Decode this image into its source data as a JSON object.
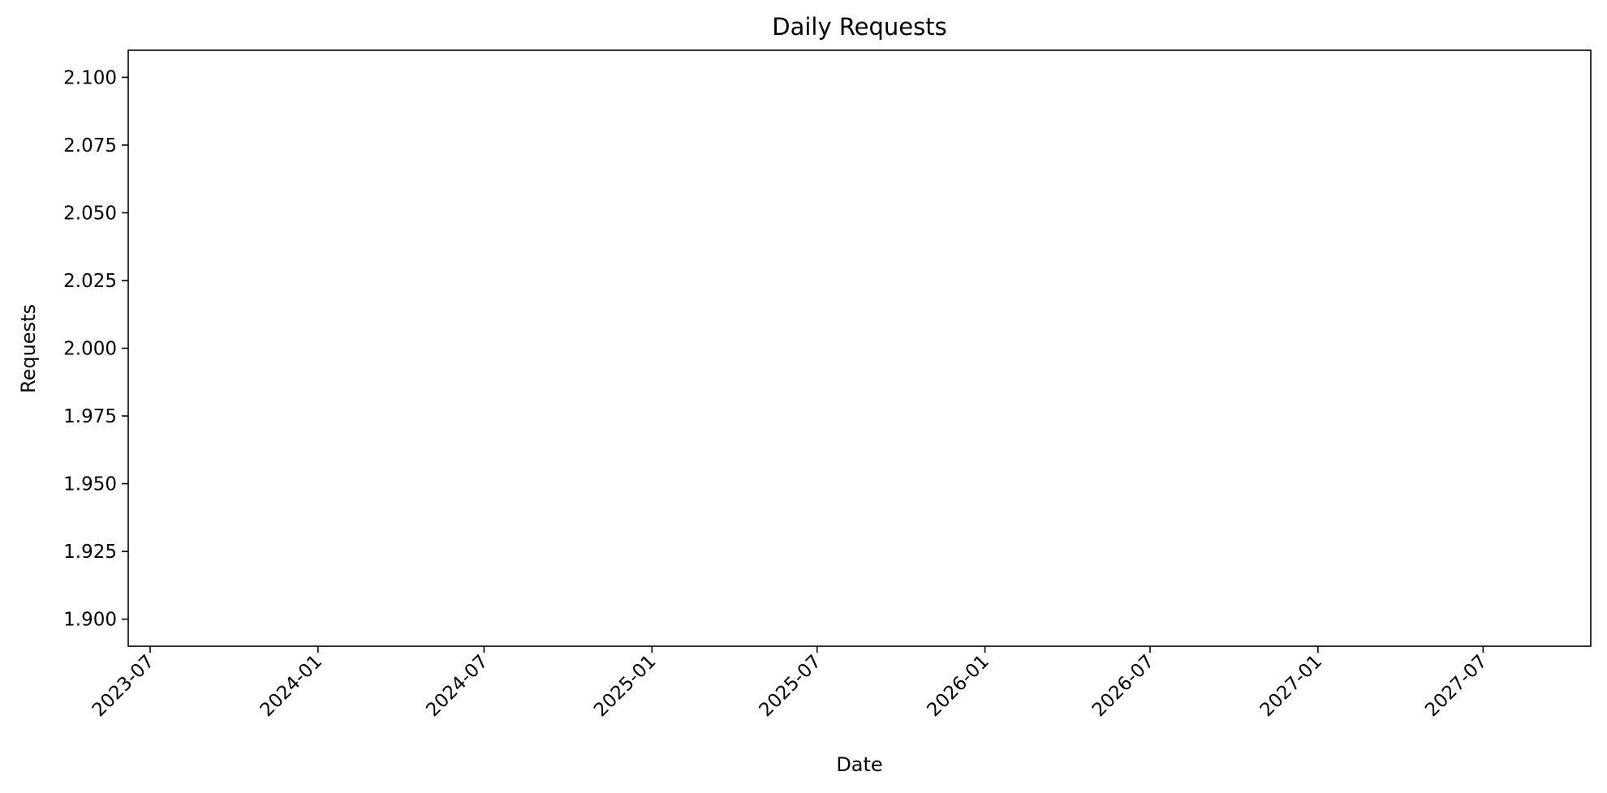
{
  "chart_data": {
    "type": "line",
    "title": "Daily Requests",
    "xlabel": "Date",
    "ylabel": "Requests",
    "x_ticks": [
      "2023-07",
      "2024-01",
      "2024-07",
      "2025-01",
      "2025-07",
      "2026-01",
      "2026-07",
      "2027-01",
      "2027-07"
    ],
    "y_ticks": [
      "1.900",
      "1.925",
      "1.950",
      "1.975",
      "2.000",
      "2.025",
      "2.050",
      "2.075",
      "2.100"
    ],
    "ylim": [
      1.89,
      2.11
    ],
    "xlim": [
      "2023-06-07",
      "2027-10-27"
    ],
    "grid": false,
    "series": [],
    "colors": {
      "axis": "#000000",
      "background": "#ffffff"
    }
  }
}
